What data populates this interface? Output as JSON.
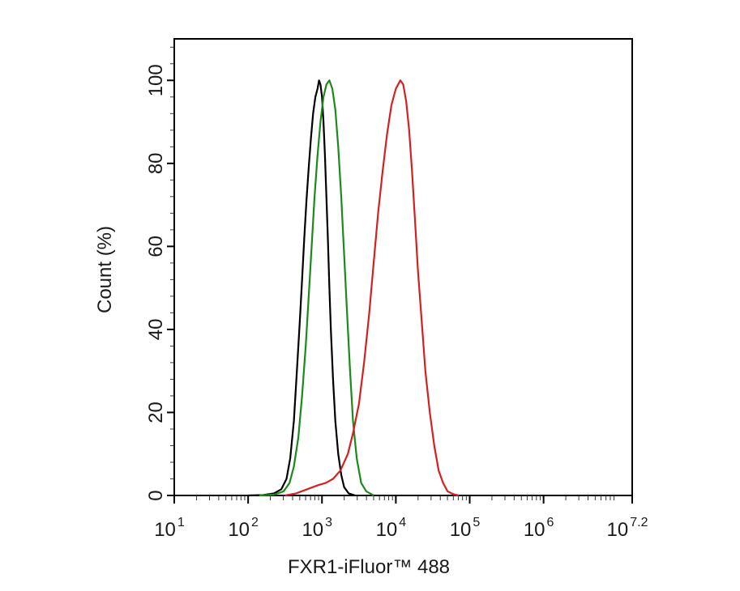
{
  "chart_data": {
    "type": "line",
    "xlabel": "FXR1-iFluor™ 488",
    "ylabel": "Count  (%)",
    "x_scale": "log10",
    "xlim": [
      1,
      7.2
    ],
    "ylim": [
      0,
      110
    ],
    "x_ticks": [
      {
        "base": "10",
        "exp": "1"
      },
      {
        "base": "10",
        "exp": "2"
      },
      {
        "base": "10",
        "exp": "3"
      },
      {
        "base": "10",
        "exp": "4"
      },
      {
        "base": "10",
        "exp": "5"
      },
      {
        "base": "10",
        "exp": "6"
      },
      {
        "base": "10",
        "exp": "7.2"
      }
    ],
    "y_ticks": [
      "0",
      "20",
      "40",
      "60",
      "80",
      "100"
    ],
    "y_tick_values": [
      0,
      20,
      40,
      60,
      80,
      100
    ],
    "grid": false,
    "series": [
      {
        "color": "#000000",
        "points": [
          [
            2.0,
            0
          ],
          [
            2.2,
            0.1
          ],
          [
            2.35,
            0.5
          ],
          [
            2.45,
            1.5
          ],
          [
            2.52,
            4
          ],
          [
            2.57,
            9
          ],
          [
            2.62,
            18
          ],
          [
            2.66,
            30
          ],
          [
            2.7,
            42
          ],
          [
            2.73,
            52
          ],
          [
            2.76,
            62
          ],
          [
            2.79,
            71
          ],
          [
            2.82,
            79
          ],
          [
            2.85,
            86
          ],
          [
            2.88,
            92
          ],
          [
            2.91,
            96
          ],
          [
            2.94,
            98
          ],
          [
            2.96,
            100
          ],
          [
            2.98,
            99
          ],
          [
            3.0,
            96
          ],
          [
            3.02,
            90
          ],
          [
            3.04,
            82
          ],
          [
            3.06,
            72
          ],
          [
            3.08,
            62
          ],
          [
            3.1,
            50
          ],
          [
            3.12,
            40
          ],
          [
            3.15,
            28
          ],
          [
            3.18,
            18
          ],
          [
            3.22,
            10
          ],
          [
            3.26,
            5
          ],
          [
            3.3,
            2
          ],
          [
            3.36,
            0.5
          ],
          [
            3.45,
            0
          ]
        ]
      },
      {
        "color": "#1b8a1b",
        "points": [
          [
            2.15,
            0
          ],
          [
            2.35,
            0.2
          ],
          [
            2.48,
            1
          ],
          [
            2.56,
            3
          ],
          [
            2.62,
            7
          ],
          [
            2.68,
            14
          ],
          [
            2.73,
            24
          ],
          [
            2.78,
            36
          ],
          [
            2.82,
            48
          ],
          [
            2.86,
            60
          ],
          [
            2.9,
            72
          ],
          [
            2.94,
            82
          ],
          [
            2.98,
            90
          ],
          [
            3.02,
            96
          ],
          [
            3.06,
            99
          ],
          [
            3.1,
            100
          ],
          [
            3.14,
            98
          ],
          [
            3.18,
            93
          ],
          [
            3.22,
            84
          ],
          [
            3.26,
            72
          ],
          [
            3.3,
            58
          ],
          [
            3.34,
            44
          ],
          [
            3.38,
            30
          ],
          [
            3.42,
            18
          ],
          [
            3.47,
            9
          ],
          [
            3.53,
            3
          ],
          [
            3.6,
            1
          ],
          [
            3.7,
            0
          ]
        ]
      },
      {
        "color": "#d42020",
        "points": [
          [
            2.5,
            0
          ],
          [
            2.65,
            0.5
          ],
          [
            2.8,
            1.5
          ],
          [
            2.95,
            2.5
          ],
          [
            3.05,
            3
          ],
          [
            3.15,
            4
          ],
          [
            3.25,
            6
          ],
          [
            3.35,
            10
          ],
          [
            3.42,
            15
          ],
          [
            3.5,
            22
          ],
          [
            3.57,
            32
          ],
          [
            3.64,
            44
          ],
          [
            3.7,
            56
          ],
          [
            3.76,
            68
          ],
          [
            3.82,
            78
          ],
          [
            3.88,
            87
          ],
          [
            3.94,
            94
          ],
          [
            4.0,
            98
          ],
          [
            4.06,
            100
          ],
          [
            4.1,
            99
          ],
          [
            4.14,
            95
          ],
          [
            4.18,
            88
          ],
          [
            4.22,
            78
          ],
          [
            4.26,
            66
          ],
          [
            4.3,
            54
          ],
          [
            4.35,
            42
          ],
          [
            4.4,
            30
          ],
          [
            4.46,
            20
          ],
          [
            4.52,
            12
          ],
          [
            4.58,
            6
          ],
          [
            4.64,
            3
          ],
          [
            4.7,
            1
          ],
          [
            4.78,
            0.3
          ],
          [
            4.85,
            0
          ]
        ]
      }
    ]
  }
}
